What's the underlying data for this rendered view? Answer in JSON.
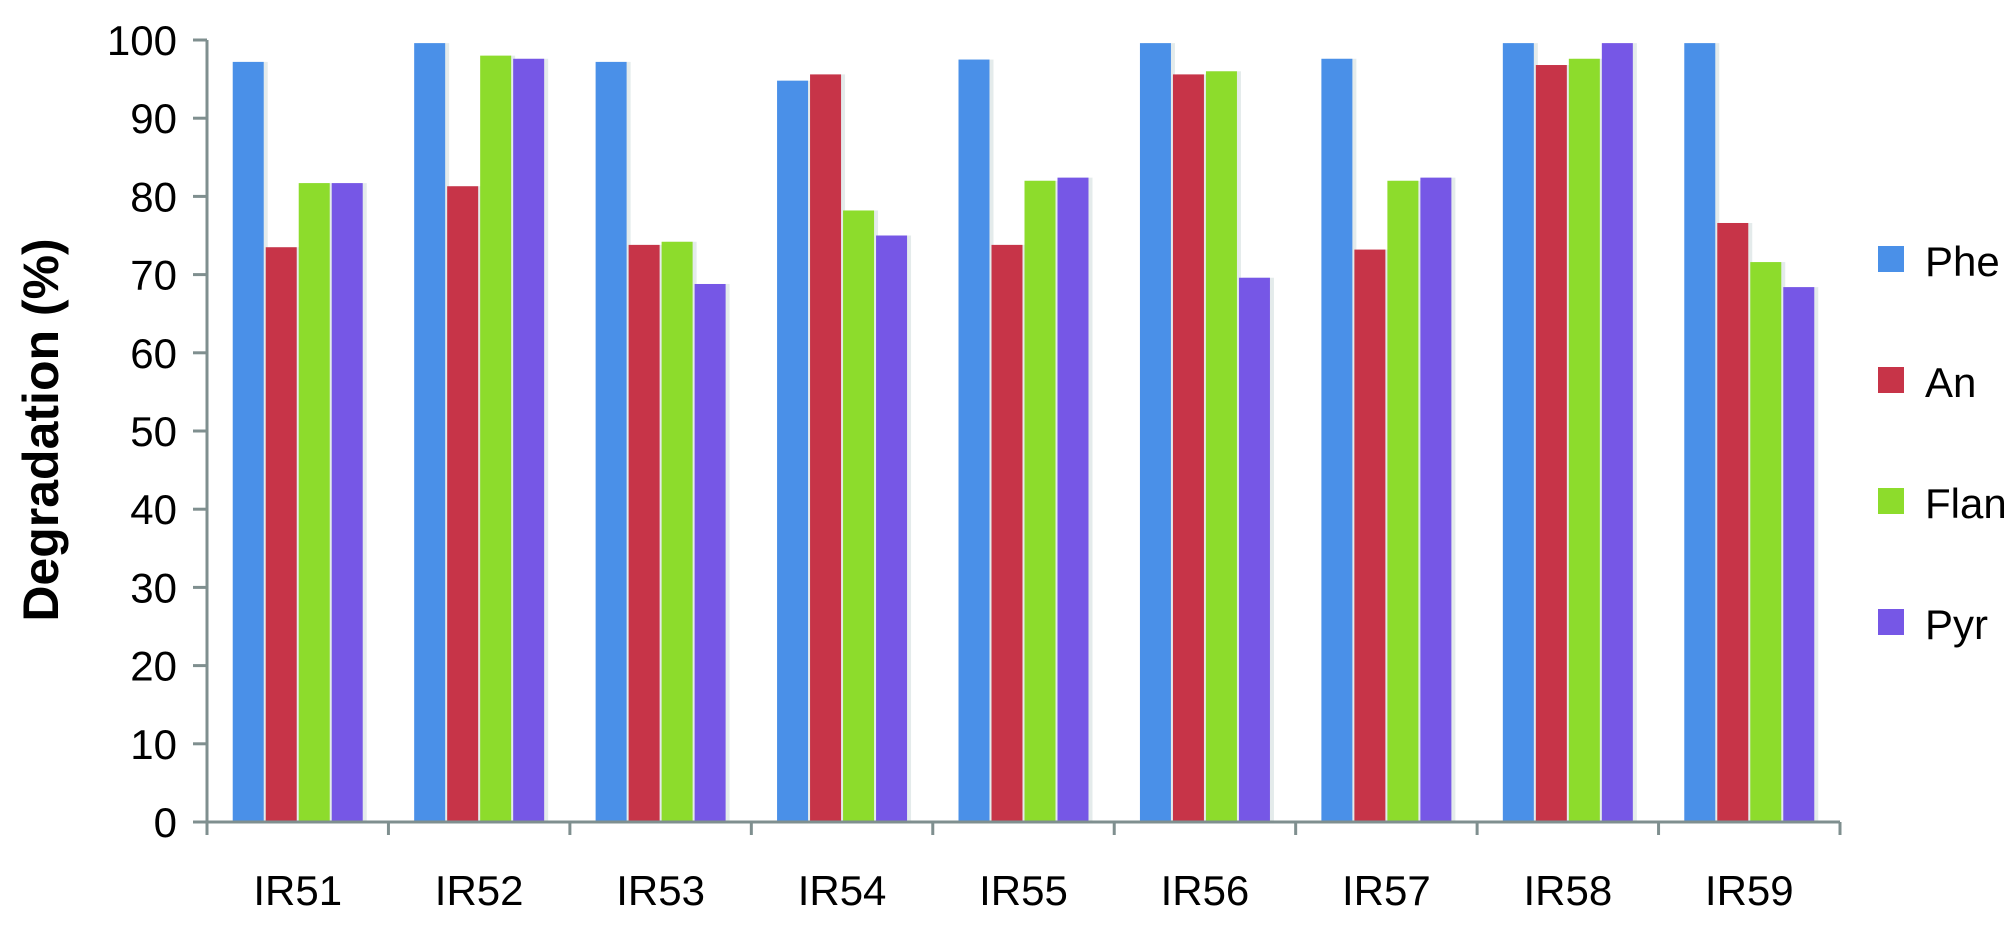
{
  "chart_data": {
    "type": "bar",
    "categories": [
      "IR51",
      "IR52",
      "IR53",
      "IR54",
      "IR55",
      "IR56",
      "IR57",
      "IR58",
      "IR59"
    ],
    "series": [
      {
        "name": "Phe",
        "color": "#4a90e8",
        "values": [
          97.2,
          99.6,
          97.2,
          94.8,
          97.5,
          99.6,
          97.6,
          99.6,
          99.6
        ]
      },
      {
        "name": "An",
        "color": "#c73448",
        "values": [
          73.5,
          81.3,
          73.8,
          95.6,
          73.8,
          95.6,
          73.2,
          96.8,
          76.6
        ]
      },
      {
        "name": "Flan",
        "color": "#8ddc2c",
        "values": [
          81.7,
          98.0,
          74.2,
          78.2,
          82.0,
          96.0,
          82.0,
          97.6,
          71.6
        ]
      },
      {
        "name": "Pyr",
        "color": "#7657e6",
        "values": [
          81.7,
          97.6,
          68.8,
          75.0,
          82.4,
          69.6,
          82.4,
          99.6,
          68.4
        ]
      }
    ],
    "ylabel": "Degradation  (%)",
    "xlabel": "",
    "ylim": [
      0,
      100
    ],
    "yticks": [
      "0",
      "10",
      "20",
      "30",
      "40",
      "50",
      "60",
      "70",
      "80",
      "90",
      "100"
    ],
    "legend_position": "right",
    "grid": false,
    "axis_color": "#7f8f8f"
  }
}
